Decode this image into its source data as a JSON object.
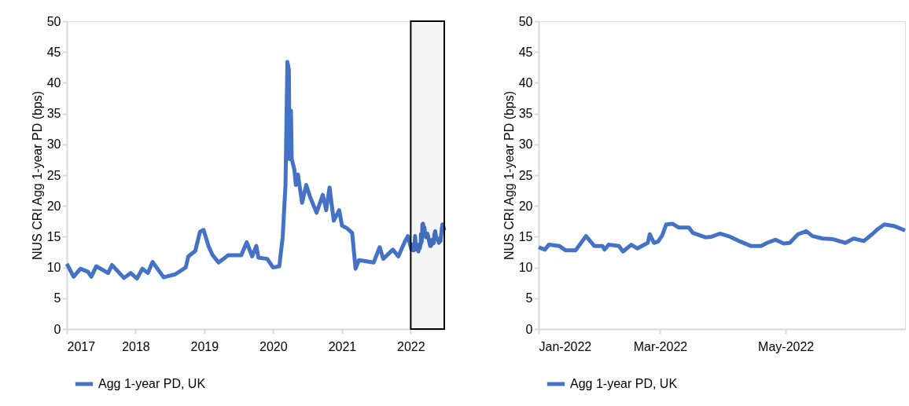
{
  "chart_data": [
    {
      "type": "line",
      "ylabel": "NUS  CRI Agg 1-year PD (bps)",
      "xlim": [
        "2017-01-01",
        "2022-06-28"
      ],
      "ylim": [
        0,
        50
      ],
      "yticks": [
        0,
        5,
        10,
        15,
        20,
        25,
        30,
        35,
        40,
        45,
        50
      ],
      "xticks": [
        {
          "value": "2017-01-01",
          "label": "2017"
        },
        {
          "value": "2018-01-01",
          "label": "2018"
        },
        {
          "value": "2019-01-01",
          "label": "2019"
        },
        {
          "value": "2020-01-01",
          "label": "2020"
        },
        {
          "value": "2021-01-01",
          "label": "2021"
        },
        {
          "value": "2022-01-01",
          "label": "2022"
        }
      ],
      "grid": false,
      "legend": "bottom",
      "line_style": "solid",
      "marker": "none",
      "bands": [
        {
          "axis": "x",
          "from": "2022-01-01",
          "to": "2022-06-28",
          "color": "#000000"
        }
      ],
      "x": [
        "2017-01-01",
        "2017-02-06",
        "2017-03-14",
        "2017-04-23",
        "2017-05-11",
        "2017-06-06",
        "2017-08-08",
        "2017-08-29",
        "2017-10-31",
        "2017-12-06",
        "2018-01-08",
        "2018-02-06",
        "2018-03-07",
        "2018-04-01",
        "2018-05-30",
        "2018-07-31",
        "2018-09-24",
        "2018-10-08",
        "2018-11-14",
        "2018-12-09",
        "2018-12-28",
        "2019-01-23",
        "2019-02-14",
        "2019-03-18",
        "2019-05-08",
        "2019-07-16",
        "2019-08-14",
        "2019-09-12",
        "2019-10-04",
        "2019-10-15",
        "2019-12-01",
        "2020-01-01",
        "2020-02-03",
        "2020-02-21",
        "2020-03-07",
        "2020-03-17",
        "2020-03-25",
        "2020-03-28",
        "2020-04-05",
        "2020-04-09",
        "2020-04-23",
        "2020-05-01",
        "2020-05-12",
        "2020-06-03",
        "2020-06-25",
        "2020-07-16",
        "2020-08-19",
        "2020-09-21",
        "2020-10-09",
        "2020-10-27",
        "2020-11-18",
        "2020-12-17",
        "2021-01-01",
        "2021-01-26",
        "2021-02-24",
        "2021-03-14",
        "2021-04-01",
        "2021-06-18",
        "2021-07-20",
        "2021-08-08",
        "2021-09-28",
        "2021-10-27",
        "2021-12-02",
        "2021-12-17",
        "2022-01-01",
        "2022-01-04",
        "2022-01-06",
        "2022-01-11",
        "2022-01-14",
        "2022-01-19",
        "2022-01-24",
        "2022-01-28",
        "2022-02-01",
        "2022-02-02",
        "2022-02-04",
        "2022-02-09",
        "2022-02-11",
        "2022-02-15",
        "2022-02-18",
        "2022-02-23",
        "2022-02-24",
        "2022-02-26",
        "2022-02-28",
        "2022-03-02",
        "2022-03-04",
        "2022-03-07",
        "2022-03-10",
        "2022-03-15",
        "2022-03-17",
        "2022-03-23",
        "2022-03-26",
        "2022-03-30",
        "2022-04-04",
        "2022-04-09",
        "2022-04-14",
        "2022-04-19",
        "2022-04-22",
        "2022-04-26",
        "2022-04-30",
        "2022-05-03",
        "2022-05-07",
        "2022-05-11",
        "2022-05-14",
        "2022-05-19",
        "2022-05-24",
        "2022-05-30",
        "2022-06-03",
        "2022-06-08",
        "2022-06-12",
        "2022-06-15",
        "2022-06-18",
        "2022-06-23",
        "2022-06-28"
      ],
      "series": [
        {
          "name": "Agg 1-year PD, UK",
          "color": "#4472c4",
          "values": [
            10.6,
            8.5,
            9.8,
            9.3,
            8.5,
            10.2,
            9.1,
            10.4,
            8.3,
            9.1,
            8.2,
            9.8,
            9.1,
            10.9,
            8.4,
            8.9,
            10.0,
            11.8,
            12.7,
            15.8,
            16.1,
            13.5,
            12.0,
            10.8,
            12.0,
            12.0,
            14.1,
            11.8,
            13.5,
            11.6,
            11.4,
            10.0,
            10.2,
            14.9,
            23.4,
            43.4,
            42.1,
            27.6,
            35.5,
            27.6,
            25.9,
            23.4,
            25.1,
            20.5,
            23.4,
            21.4,
            18.9,
            21.8,
            19.3,
            23.0,
            17.6,
            19.3,
            16.8,
            16.4,
            15.6,
            9.8,
            11.2,
            10.8,
            13.3,
            11.4,
            12.9,
            11.8,
            14.3,
            15.1,
            13.3,
            12.9,
            13.7,
            13.5,
            12.8,
            12.8,
            15.1,
            13.5,
            13.5,
            12.9,
            13.7,
            13.5,
            12.6,
            13.7,
            13.1,
            14.0,
            15.4,
            14.0,
            14.2,
            15.2,
            17.0,
            17.1,
            16.5,
            16.5,
            15.6,
            14.9,
            15.0,
            15.5,
            15.0,
            14.2,
            13.5,
            13.5,
            14.0,
            14.5,
            13.9,
            14.0,
            15.4,
            15.9,
            15.1,
            14.7,
            14.6,
            14.0,
            14.7,
            14.3,
            15.4,
            16.3,
            17.0,
            16.7,
            16.0
          ]
        }
      ]
    },
    {
      "type": "line",
      "ylabel": "NUS  CRI Agg 1-year PD (bps)",
      "xlim": [
        "2022-01-01",
        "2022-06-28"
      ],
      "ylim": [
        0,
        50
      ],
      "yticks": [
        0,
        5,
        10,
        15,
        20,
        25,
        30,
        35,
        40,
        45,
        50
      ],
      "xticks": [
        {
          "value": "2022-01-01",
          "label": "Jan-2022"
        },
        {
          "value": "2022-03-01",
          "label": "Mar-2022"
        },
        {
          "value": "2022-05-01",
          "label": "May-2022"
        }
      ],
      "grid": false,
      "legend": "bottom",
      "line_style": "solid",
      "marker": "none",
      "x": [
        "2022-01-01",
        "2022-01-04",
        "2022-01-06",
        "2022-01-11",
        "2022-01-14",
        "2022-01-19",
        "2022-01-24",
        "2022-01-28",
        "2022-02-01",
        "2022-02-02",
        "2022-02-04",
        "2022-02-09",
        "2022-02-11",
        "2022-02-15",
        "2022-02-18",
        "2022-02-23",
        "2022-02-24",
        "2022-02-26",
        "2022-02-28",
        "2022-03-02",
        "2022-03-04",
        "2022-03-07",
        "2022-03-10",
        "2022-03-15",
        "2022-03-17",
        "2022-03-23",
        "2022-03-26",
        "2022-03-30",
        "2022-04-04",
        "2022-04-09",
        "2022-04-14",
        "2022-04-19",
        "2022-04-22",
        "2022-04-26",
        "2022-04-30",
        "2022-05-03",
        "2022-05-07",
        "2022-05-11",
        "2022-05-14",
        "2022-05-19",
        "2022-05-24",
        "2022-05-30",
        "2022-06-03",
        "2022-06-08",
        "2022-06-12",
        "2022-06-15",
        "2022-06-18",
        "2022-06-23",
        "2022-06-28"
      ],
      "series": [
        {
          "name": "Agg 1-year PD, UK",
          "color": "#4472c4",
          "values": [
            13.3,
            12.9,
            13.7,
            13.5,
            12.8,
            12.8,
            15.1,
            13.5,
            13.5,
            12.9,
            13.7,
            13.5,
            12.6,
            13.7,
            13.1,
            14.0,
            15.4,
            14.0,
            14.2,
            15.2,
            17.0,
            17.1,
            16.5,
            16.5,
            15.6,
            14.9,
            15.0,
            15.5,
            15.0,
            14.2,
            13.5,
            13.5,
            14.0,
            14.5,
            13.9,
            14.0,
            15.4,
            15.9,
            15.1,
            14.7,
            14.6,
            14.0,
            14.7,
            14.3,
            15.4,
            16.3,
            17.0,
            16.7,
            16.0
          ]
        }
      ]
    }
  ]
}
